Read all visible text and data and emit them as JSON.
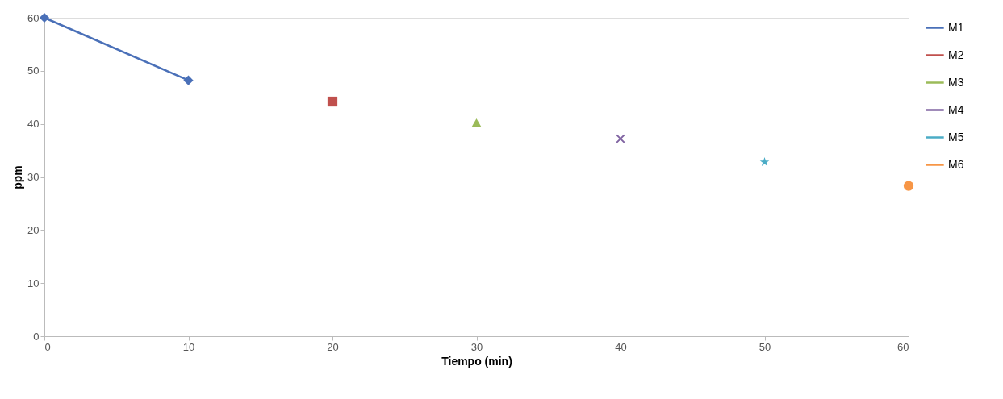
{
  "chart_data": {
    "type": "line",
    "xlabel": "Tiempo (min)",
    "ylabel": "ppm",
    "xlim": [
      0,
      60
    ],
    "xticks": [
      0,
      10,
      20,
      30,
      40,
      50,
      60
    ],
    "ylim": [
      0,
      60
    ],
    "yticks": [
      0,
      10,
      20,
      30,
      40,
      50,
      60
    ],
    "grid": false,
    "legend": "right",
    "line_style": "solid",
    "series": [
      {
        "name": "M1",
        "color": "#4a70b8",
        "marker": "diamond",
        "x": [
          0,
          10
        ],
        "values": [
          60,
          48.2
        ]
      },
      {
        "name": "M2",
        "color": "#c0504d",
        "marker": "square",
        "x": [
          20
        ],
        "values": [
          44.2
        ]
      },
      {
        "name": "M3",
        "color": "#9bbb59",
        "marker": "triangle",
        "x": [
          30
        ],
        "values": [
          40.2
        ]
      },
      {
        "name": "M4",
        "color": "#8064a2",
        "marker": "cross",
        "x": [
          40
        ],
        "values": [
          37.2
        ]
      },
      {
        "name": "M5",
        "color": "#4bacc6",
        "marker": "star",
        "x": [
          50
        ],
        "values": [
          32.8
        ]
      },
      {
        "name": "M6",
        "color": "#f79646",
        "marker": "circle",
        "x": [
          60
        ],
        "values": [
          28.3
        ]
      }
    ]
  }
}
